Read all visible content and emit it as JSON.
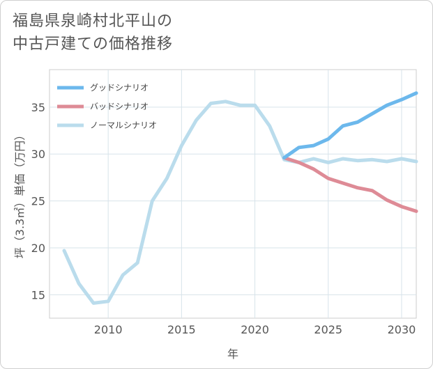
{
  "title": {
    "line1": "福島県泉崎村北平山の",
    "line2": "中古戸建ての価格推移"
  },
  "chart_data": {
    "type": "line",
    "xlabel": "年",
    "ylabel": "坪（3.3㎡）単価（万円）",
    "xlim": [
      2006,
      2031
    ],
    "ylim": [
      12.5,
      39
    ],
    "xticks": [
      2010,
      2015,
      2020,
      2025,
      2030
    ],
    "yticks": [
      15,
      20,
      25,
      30,
      35
    ],
    "grid": true,
    "legend_position": "top-left",
    "series": [
      {
        "name": "グッドシナリオ",
        "color": "#6cb8ec",
        "x": [
          2022,
          2023,
          2024,
          2025,
          2026,
          2027,
          2028,
          2029,
          2030,
          2031
        ],
        "y": [
          29.6,
          30.7,
          30.9,
          31.6,
          33.0,
          33.4,
          34.3,
          35.2,
          35.8,
          36.5
        ]
      },
      {
        "name": "バッドシナリオ",
        "color": "#de8b96",
        "x": [
          2022,
          2023,
          2024,
          2025,
          2026,
          2027,
          2028,
          2029,
          2030,
          2031
        ],
        "y": [
          29.6,
          29.1,
          28.4,
          27.4,
          26.9,
          26.4,
          26.1,
          25.1,
          24.4,
          23.9
        ]
      },
      {
        "name": "ノーマルシナリオ",
        "color": "#badcec",
        "x": [
          2007,
          2008,
          2009,
          2010,
          2011,
          2012,
          2013,
          2014,
          2015,
          2016,
          2017,
          2018,
          2019,
          2020,
          2021,
          2022,
          2023,
          2024,
          2025,
          2026,
          2027,
          2028,
          2029,
          2030,
          2031
        ],
        "y": [
          19.7,
          16.2,
          14.1,
          14.3,
          17.1,
          18.4,
          25.0,
          27.4,
          30.9,
          33.6,
          35.4,
          35.6,
          35.2,
          35.2,
          33.0,
          29.4,
          29.1,
          29.5,
          29.1,
          29.5,
          29.3,
          29.4,
          29.2,
          29.5,
          29.2
        ]
      }
    ]
  }
}
